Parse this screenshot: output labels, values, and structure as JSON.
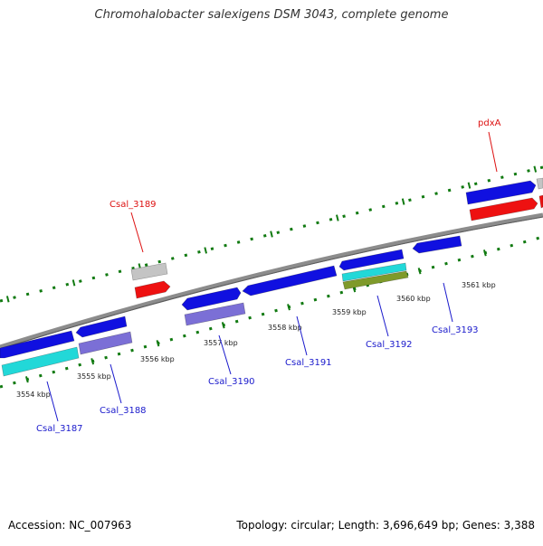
{
  "title": "Chromohalobacter salexigens DSM 3043, complete genome",
  "footer": {
    "accession": "Accession: NC_007963",
    "summary": "Topology: circular; Length: 3,696,649 bp; Genes: 3,388"
  },
  "colors": {
    "backbone": "#8c8c8c",
    "tick": "#117a11",
    "forward_cds": "#1010e0",
    "reverse_cds": "#1010e0",
    "rna_gray": "#c4c4c4",
    "rna_red": "#ee1111",
    "cyan": "#22d8d8",
    "purple": "#7b6fd6",
    "olive": "#7f9a2a",
    "label_blue": "#1a1acc",
    "label_red": "#dd1111"
  },
  "kbp_labels": [
    "3554 kbp",
    "3555 kbp",
    "3556 kbp",
    "3557 kbp",
    "3558 kbp",
    "3559 kbp",
    "3560 kbp",
    "3561 kbp"
  ],
  "gene_labels": [
    {
      "id": "csal-3187",
      "text": "Csal_3187",
      "color": "blue"
    },
    {
      "id": "csal-3188",
      "text": "Csal_3188",
      "color": "blue"
    },
    {
      "id": "csal-3189",
      "text": "Csal_3189",
      "color": "red"
    },
    {
      "id": "csal-3190",
      "text": "Csal_3190",
      "color": "blue"
    },
    {
      "id": "csal-3191",
      "text": "Csal_3191",
      "color": "blue"
    },
    {
      "id": "csal-3192",
      "text": "Csal_3192",
      "color": "blue"
    },
    {
      "id": "csal-3193",
      "text": "Csal_3193",
      "color": "blue"
    },
    {
      "id": "pdxa",
      "text": "pdxA",
      "color": "red"
    }
  ]
}
